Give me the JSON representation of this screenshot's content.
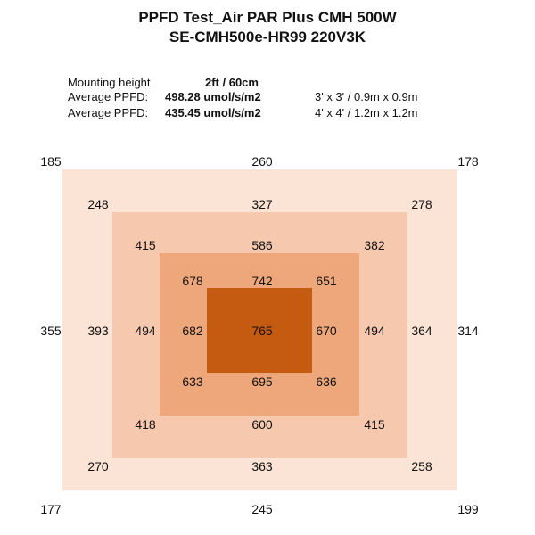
{
  "title_line1": "PPFD Test_Air PAR Plus CMH 500W",
  "title_line2": "SE-CMH500e-HR99 220V3K",
  "info": {
    "mounting_label": "Mounting height",
    "mounting_value": "2ft / 60cm",
    "avg1_label": "Average PPFD:",
    "avg1_value": "498.28 umol/s/m2",
    "avg1_area": "3' x 3' / 0.9m x 0.9m",
    "avg2_label": "Average PPFD:",
    "avg2_value": "435.45 umol/s/m2",
    "avg2_area": "4' x 4' / 1.2m x 1.2m"
  },
  "colors": {
    "zone_outer": "#fbe3d5",
    "zone_mid": "#f6c9af",
    "zone_inner": "#eea77a",
    "zone_center": "#c55a11"
  },
  "chart_data": {
    "type": "heatmap",
    "title": "PPFD Test_Air PAR Plus CMH 500W",
    "subtitle": "SE-CMH500e-HR99 220V3K",
    "unit": "umol/s/m2",
    "grid": "off",
    "rings": [
      {
        "ring": 1,
        "values": {
          "top_left": 185,
          "top": 260,
          "top_right": 178,
          "left": 355,
          "right": 314,
          "bottom_left": 177,
          "bottom": 245,
          "bottom_right": 199
        }
      },
      {
        "ring": 2,
        "values": {
          "top_left": 248,
          "top": 327,
          "top_right": 278,
          "left": 393,
          "right": 364,
          "bottom_left": 270,
          "bottom": 363,
          "bottom_right": 258
        }
      },
      {
        "ring": 3,
        "values": {
          "top_left": 415,
          "top": 586,
          "top_right": 382,
          "left": 494,
          "right": 494,
          "bottom_left": 418,
          "bottom": 600,
          "bottom_right": 415
        }
      },
      {
        "ring": 4,
        "values": {
          "top_left": 678,
          "top": 742,
          "top_right": 651,
          "left": 682,
          "right": 670,
          "bottom_left": 633,
          "bottom": 695,
          "bottom_right": 636
        }
      },
      {
        "ring": 5,
        "values": {
          "center": 765
        }
      }
    ]
  }
}
